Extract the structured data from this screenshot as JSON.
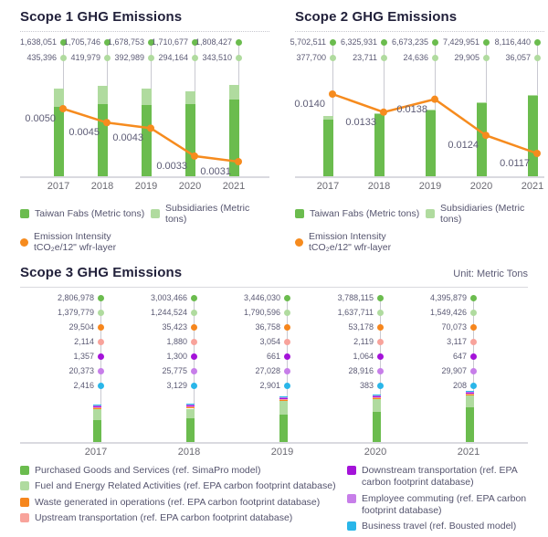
{
  "unit_label": "Unit: Metric Tons",
  "chart_data": [
    {
      "type": "bar",
      "title": "Scope 1 GHG Emissions",
      "years": [
        "2017",
        "2018",
        "2019",
        "2020",
        "2021"
      ],
      "series": [
        {
          "name": "Taiwan Fabs (Metric tons)",
          "color": "#6bbc4e",
          "values": [
            1638051,
            1705746,
            1678753,
            1710677,
            1808427
          ]
        },
        {
          "name": "Subsidiaries (Metric tons)",
          "color": "#b0db9f",
          "values": [
            435396,
            419979,
            392989,
            294164,
            343510
          ]
        }
      ],
      "line": {
        "name": "Emission Intensity tCO₂e/12\" wfr-layer",
        "color": "#f68b1e",
        "values": [
          0.005,
          0.0045,
          0.0043,
          0.0033,
          0.0031
        ]
      }
    },
    {
      "type": "bar",
      "title": "Scope 2 GHG Emissions",
      "years": [
        "2017",
        "2018",
        "2019",
        "2020",
        "2021"
      ],
      "series": [
        {
          "name": "Taiwan Fabs (Metric tons)",
          "color": "#6bbc4e",
          "values": [
            5702511,
            6325931,
            6673235,
            7429951,
            8116440
          ]
        },
        {
          "name": "Subsidiaries (Metric tons)",
          "color": "#b0db9f",
          "values": [
            377700,
            23711,
            24636,
            29905,
            36057
          ]
        }
      ],
      "line": {
        "name": "Emission Intensity tCO₂e/12\" wfr-layer",
        "color": "#f68b1e",
        "values": [
          0.014,
          0.0133,
          0.0138,
          0.0124,
          0.0117
        ]
      }
    },
    {
      "type": "bar",
      "title": "Scope 3 GHG Emissions",
      "years": [
        "2017",
        "2018",
        "2019",
        "2020",
        "2021"
      ],
      "series": [
        {
          "name": "Purchased Goods and Services (ref. SimaPro model)",
          "color": "#6bbc4e",
          "values": [
            2806978,
            3003466,
            3446030,
            3788115,
            4395879
          ]
        },
        {
          "name": "Fuel and Energy Related Activities (ref. EPA carbon footprint database)",
          "color": "#b0db9f",
          "values": [
            1379779,
            1244524,
            1790596,
            1637711,
            1549426
          ]
        },
        {
          "name": "Waste generated in operations (ref. EPA carbon footprint database)",
          "color": "#f6861d",
          "values": [
            29504,
            35423,
            36758,
            53178,
            70073
          ]
        },
        {
          "name": "Upstream transportation (ref. EPA carbon footprint database)",
          "color": "#f8a39b",
          "values": [
            2114,
            1880,
            3054,
            2119,
            3117
          ]
        },
        {
          "name": "Downstream transportation (ref. EPA carbon footprint database)",
          "color": "#a413d9",
          "values": [
            1357,
            1300,
            661,
            1064,
            647
          ]
        },
        {
          "name": "Employee commuting (ref. EPA carbon footprint database)",
          "color": "#c77ee9",
          "values": [
            20373,
            25775,
            27028,
            28916,
            29907
          ]
        },
        {
          "name": "Business travel (ref. Bousted model)",
          "color": "#2ab6e9",
          "values": [
            2416,
            3129,
            2901,
            383,
            208
          ]
        }
      ]
    }
  ]
}
